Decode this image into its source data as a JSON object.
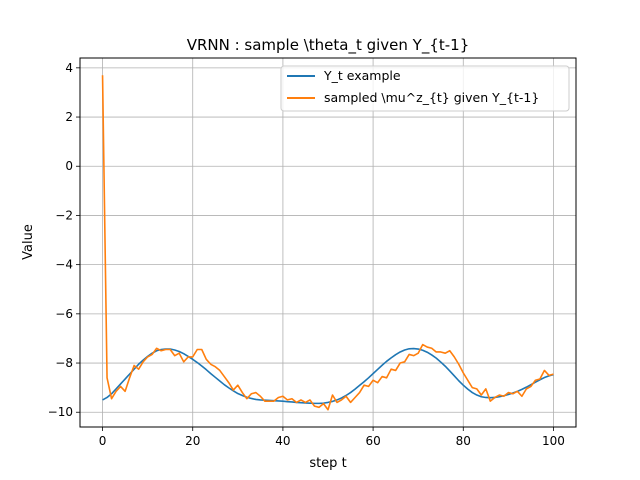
{
  "chart_data": {
    "type": "line",
    "title": "VRNN : sample \\theta_t given Y_{t-1}",
    "xlabel": "step t",
    "ylabel": "Value",
    "xlim": [
      -5,
      105
    ],
    "ylim": [
      -10.6,
      4.4
    ],
    "xticks": [
      0,
      20,
      40,
      60,
      80,
      100
    ],
    "yticks": [
      4,
      2,
      0,
      -2,
      -4,
      -6,
      -8,
      -10
    ],
    "xtick_labels": [
      "0",
      "20",
      "40",
      "60",
      "80",
      "100"
    ],
    "ytick_labels": [
      "4",
      "2",
      "0",
      "−2",
      "−4",
      "−6",
      "−8",
      "−10"
    ],
    "grid": true,
    "legend_position": "top-right",
    "series": [
      {
        "name": "Y_t example",
        "color": "#1f77b4",
        "x": [
          0,
          1,
          2,
          3,
          4,
          5,
          6,
          7,
          8,
          9,
          10,
          11,
          12,
          13,
          14,
          15,
          16,
          17,
          18,
          19,
          20,
          21,
          22,
          23,
          24,
          25,
          26,
          27,
          28,
          29,
          30,
          31,
          32,
          33,
          34,
          35,
          36,
          37,
          38,
          39,
          40,
          41,
          42,
          43,
          44,
          45,
          46,
          47,
          48,
          49,
          50,
          51,
          52,
          53,
          54,
          55,
          56,
          57,
          58,
          59,
          60,
          61,
          62,
          63,
          64,
          65,
          66,
          67,
          68,
          69,
          70,
          71,
          72,
          73,
          74,
          75,
          76,
          77,
          78,
          79,
          80,
          81,
          82,
          83,
          84,
          85,
          86,
          87,
          88,
          89,
          90,
          91,
          92,
          93,
          94,
          95,
          96,
          97,
          98,
          99,
          100
        ],
        "y": [
          -9.5,
          -9.4,
          -9.25,
          -9.05,
          -8.85,
          -8.65,
          -8.45,
          -8.25,
          -8.05,
          -7.88,
          -7.73,
          -7.6,
          -7.5,
          -7.45,
          -7.43,
          -7.43,
          -7.47,
          -7.53,
          -7.62,
          -7.73,
          -7.85,
          -7.98,
          -8.12,
          -8.27,
          -8.43,
          -8.58,
          -8.73,
          -8.88,
          -9.01,
          -9.13,
          -9.24,
          -9.32,
          -9.39,
          -9.44,
          -9.48,
          -9.5,
          -9.51,
          -9.52,
          -9.53,
          -9.54,
          -9.55,
          -9.57,
          -9.58,
          -9.6,
          -9.61,
          -9.62,
          -9.63,
          -9.64,
          -9.64,
          -9.63,
          -9.6,
          -9.56,
          -9.5,
          -9.42,
          -9.32,
          -9.2,
          -9.06,
          -8.91,
          -8.76,
          -8.6,
          -8.43,
          -8.26,
          -8.09,
          -7.93,
          -7.79,
          -7.66,
          -7.55,
          -7.47,
          -7.42,
          -7.41,
          -7.43,
          -7.48,
          -7.56,
          -7.67,
          -7.8,
          -7.96,
          -8.13,
          -8.32,
          -8.52,
          -8.72,
          -8.9,
          -9.06,
          -9.2,
          -9.3,
          -9.37,
          -9.4,
          -9.41,
          -9.4,
          -9.37,
          -9.33,
          -9.28,
          -9.22,
          -9.15,
          -9.07,
          -8.98,
          -8.88,
          -8.78,
          -8.68,
          -8.59,
          -8.52,
          -8.47
        ]
      },
      {
        "name": "sampled \\mu^z_{t} given Y_{t-1}",
        "color": "#ff7f0e",
        "x": [
          0,
          1,
          2,
          3,
          4,
          5,
          6,
          7,
          8,
          9,
          10,
          11,
          12,
          13,
          14,
          15,
          16,
          17,
          18,
          19,
          20,
          21,
          22,
          23,
          24,
          25,
          26,
          27,
          28,
          29,
          30,
          31,
          32,
          33,
          34,
          35,
          36,
          37,
          38,
          39,
          40,
          41,
          42,
          43,
          44,
          45,
          46,
          47,
          48,
          49,
          50,
          51,
          52,
          53,
          54,
          55,
          56,
          57,
          58,
          59,
          60,
          61,
          62,
          63,
          64,
          65,
          66,
          67,
          68,
          69,
          70,
          71,
          72,
          73,
          74,
          75,
          76,
          77,
          78,
          79,
          80,
          81,
          82,
          83,
          84,
          85,
          86,
          87,
          88,
          89,
          90,
          91,
          92,
          93,
          94,
          95,
          96,
          97,
          98,
          99,
          100
        ],
        "y": [
          3.7,
          -8.6,
          -9.45,
          -9.15,
          -8.95,
          -9.15,
          -8.6,
          -8.1,
          -8.25,
          -7.95,
          -7.75,
          -7.65,
          -7.4,
          -7.5,
          -7.45,
          -7.45,
          -7.7,
          -7.6,
          -7.95,
          -7.75,
          -7.75,
          -7.45,
          -7.45,
          -7.85,
          -8.05,
          -8.15,
          -8.3,
          -8.55,
          -8.8,
          -9.1,
          -8.9,
          -9.2,
          -9.45,
          -9.25,
          -9.2,
          -9.35,
          -9.55,
          -9.55,
          -9.55,
          -9.4,
          -9.35,
          -9.5,
          -9.45,
          -9.6,
          -9.5,
          -9.6,
          -9.5,
          -9.75,
          -9.8,
          -9.65,
          -9.9,
          -9.3,
          -9.6,
          -9.5,
          -9.35,
          -9.6,
          -9.4,
          -9.2,
          -8.9,
          -8.95,
          -8.7,
          -8.8,
          -8.55,
          -8.6,
          -8.25,
          -8.3,
          -8.0,
          -7.95,
          -7.65,
          -7.7,
          -7.6,
          -7.25,
          -7.35,
          -7.4,
          -7.55,
          -7.55,
          -7.6,
          -7.5,
          -7.75,
          -8.05,
          -8.4,
          -8.7,
          -9.0,
          -9.05,
          -9.3,
          -9.05,
          -9.55,
          -9.4,
          -9.3,
          -9.35,
          -9.2,
          -9.25,
          -9.15,
          -9.35,
          -9.05,
          -8.95,
          -8.7,
          -8.65,
          -8.3,
          -8.5,
          -8.45
        ]
      }
    ]
  }
}
